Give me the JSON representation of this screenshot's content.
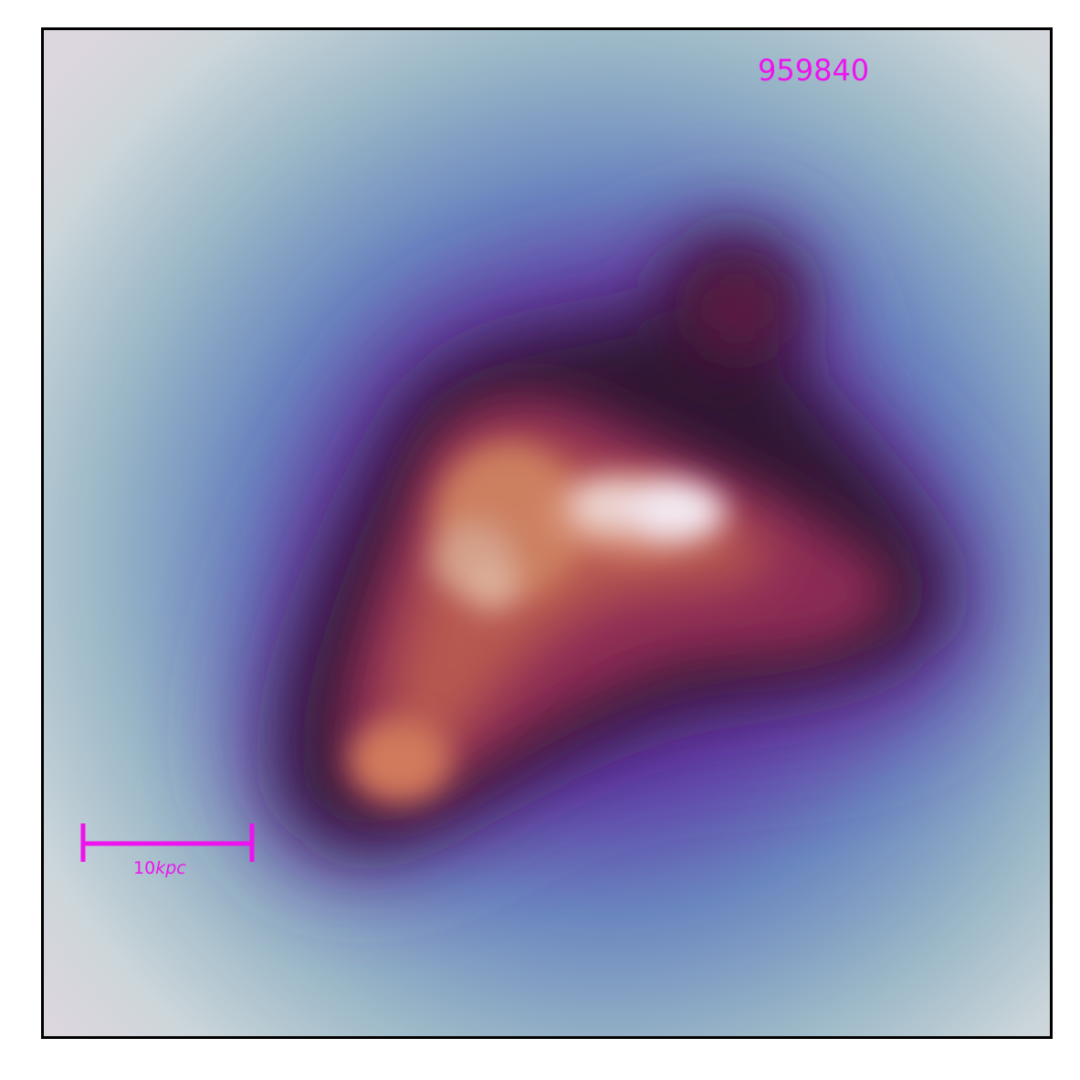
{
  "image": {
    "object_id": "959840",
    "scale_bar": {
      "value": "10",
      "unit": "kpc"
    },
    "colors": {
      "annotation": "#ee12ee",
      "frame": "#000000",
      "background": "#d7d4da"
    }
  }
}
